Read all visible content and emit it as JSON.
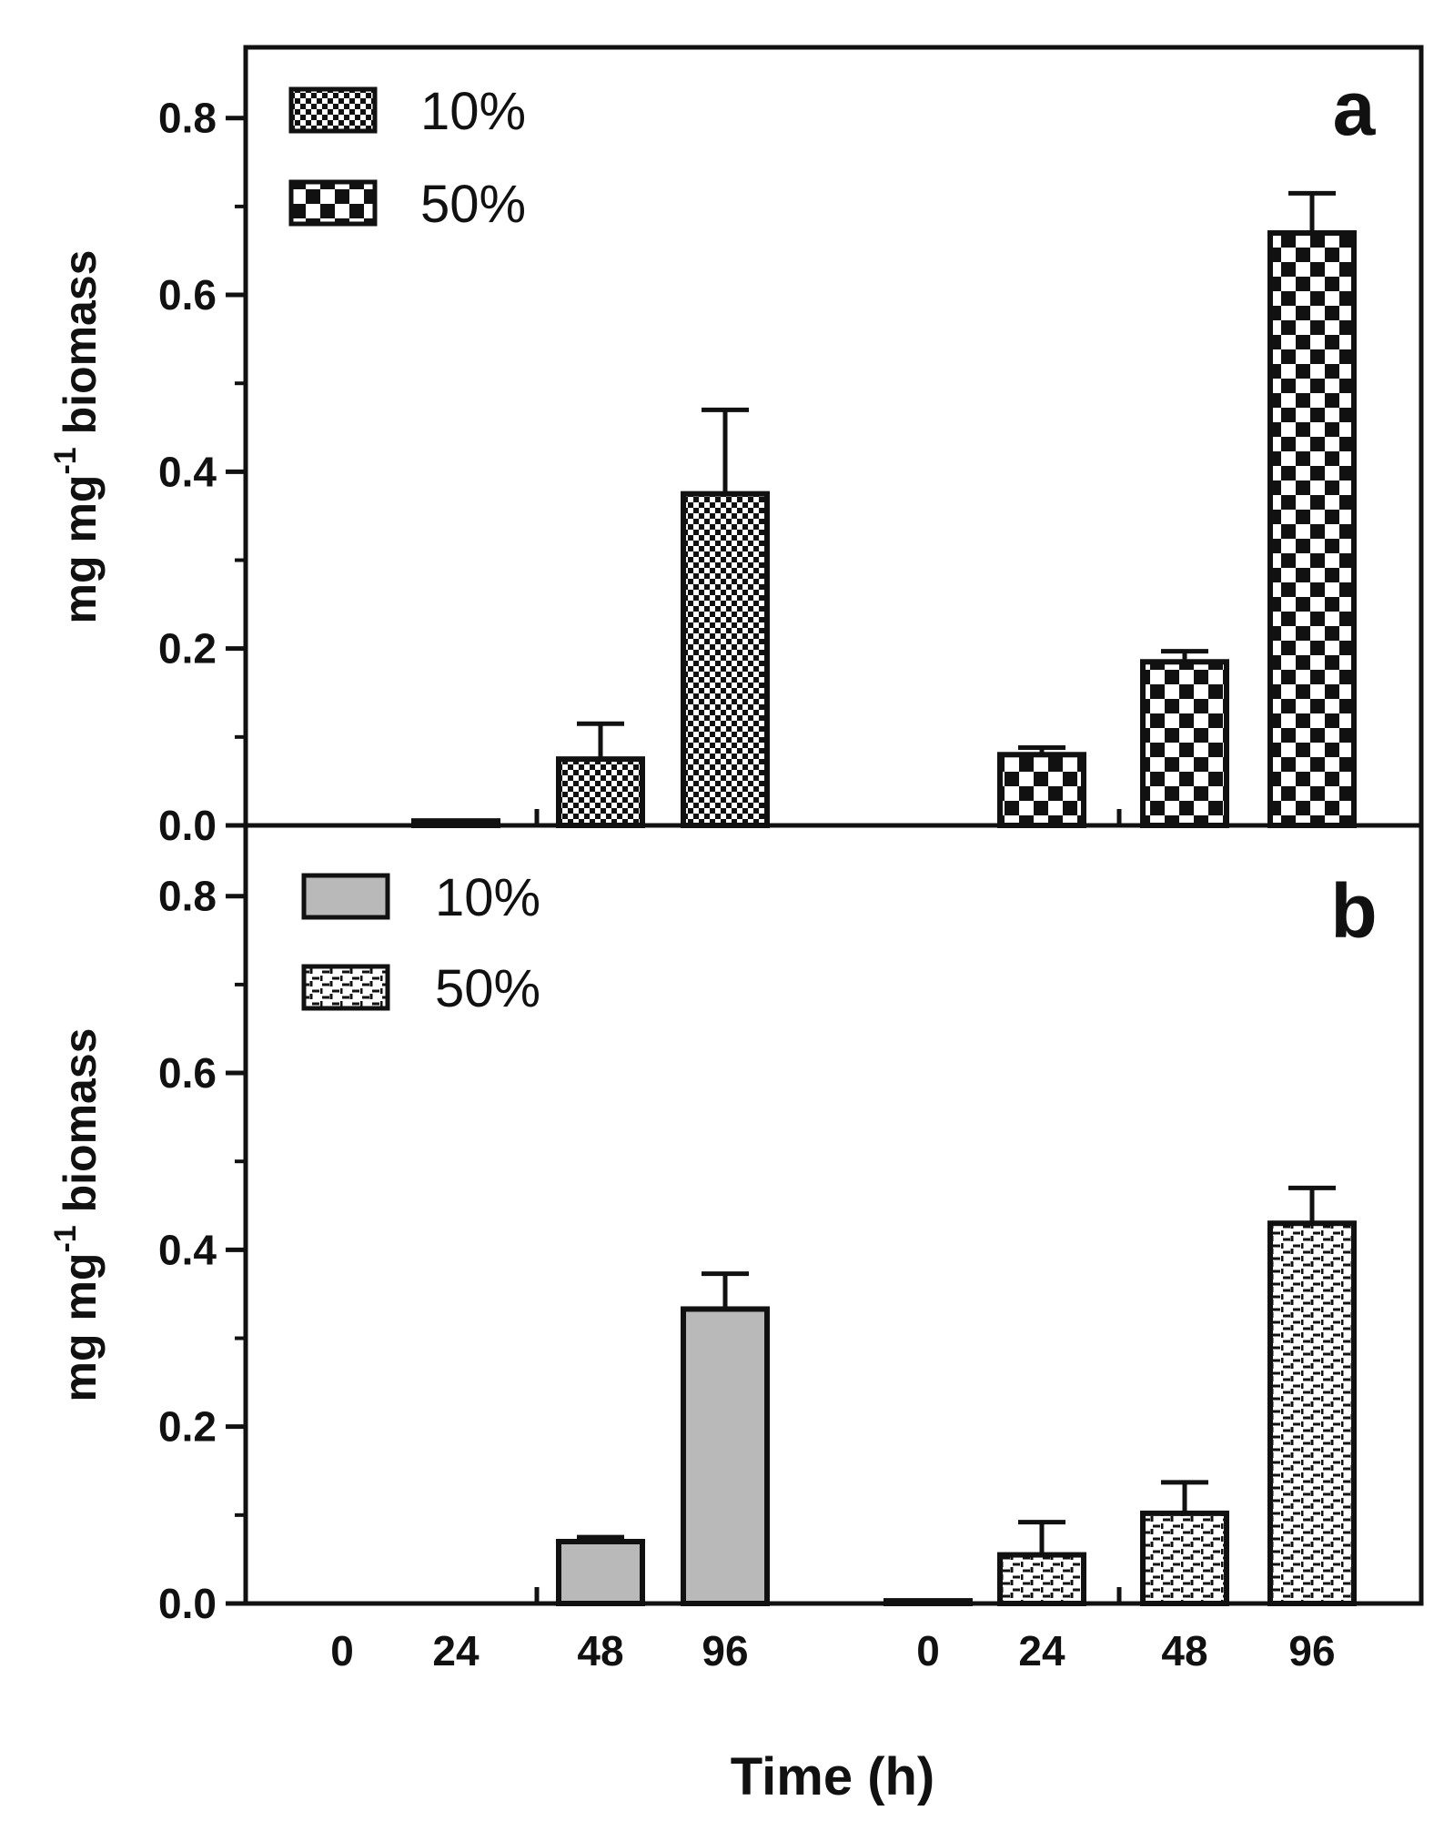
{
  "chart_data": [
    {
      "type": "bar",
      "panel": "a",
      "title": "",
      "xlabel": "Time (h)",
      "ylabel": "mg mg-1 biomass",
      "ylabel_parts": {
        "base": "mg mg",
        "sup": "-1",
        "tail": " biomass"
      },
      "ylim": [
        0,
        0.88
      ],
      "yticks": [
        "0.0",
        "0.2",
        "0.4",
        "0.6",
        "0.8"
      ],
      "groups": [
        {
          "name": "10%",
          "categories": [
            "0",
            "24",
            "48",
            "96"
          ],
          "values": [
            0.0,
            0.005,
            0.075,
            0.375
          ],
          "errors": [
            0.0,
            0.0,
            0.04,
            0.095
          ]
        },
        {
          "name": "50%",
          "categories": [
            "0",
            "24",
            "48",
            "96"
          ],
          "values": [
            0.0,
            0.08,
            0.185,
            0.67
          ],
          "errors": [
            0.0,
            0.008,
            0.012,
            0.045
          ]
        }
      ],
      "legend": [
        {
          "label": "10%",
          "pattern": "fine-check"
        },
        {
          "label": "50%",
          "pattern": "coarse-check"
        }
      ],
      "legend_position": "top-left"
    },
    {
      "type": "bar",
      "panel": "b",
      "title": "",
      "xlabel": "Time (h)",
      "ylabel": "mg mg-1 biomass",
      "ylabel_parts": {
        "base": "mg mg",
        "sup": "-1",
        "tail": " biomass"
      },
      "ylim": [
        0,
        0.88
      ],
      "yticks": [
        "0.0",
        "0.2",
        "0.4",
        "0.6",
        "0.8"
      ],
      "groups": [
        {
          "name": "10%",
          "categories": [
            "0",
            "24",
            "48",
            "96"
          ],
          "values": [
            0.0,
            0.0,
            0.07,
            0.333
          ],
          "errors": [
            0.0,
            0.0,
            0.005,
            0.04
          ]
        },
        {
          "name": "50%",
          "categories": [
            "0",
            "24",
            "48",
            "96"
          ],
          "values": [
            0.003,
            0.055,
            0.102,
            0.43
          ],
          "errors": [
            0.0,
            0.037,
            0.035,
            0.04
          ]
        }
      ],
      "legend": [
        {
          "label": "10%",
          "pattern": "gray"
        },
        {
          "label": "50%",
          "pattern": "dash-grid"
        }
      ],
      "legend_position": "top-left"
    }
  ],
  "x_tick_labels": [
    "0",
    "24",
    "48",
    "96",
    "0",
    "24",
    "48",
    "96"
  ],
  "shared_xlabel": "Time (h)",
  "panel_letters": [
    "a",
    "b"
  ]
}
